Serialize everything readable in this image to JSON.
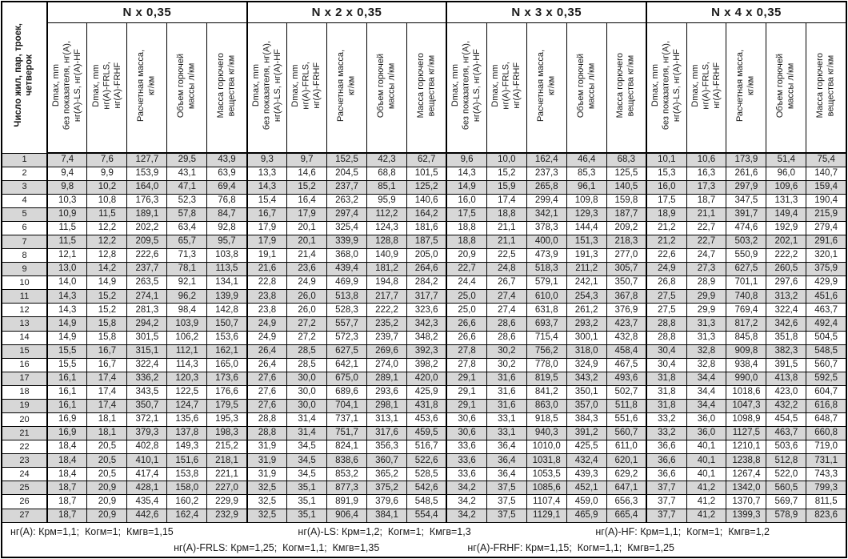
{
  "table": {
    "row_header": "Число жил, пар, троек,\nчетверок",
    "groups": [
      {
        "title": "N x 0,35"
      },
      {
        "title": "N x 2 x 0,35"
      },
      {
        "title": "N x 3 x 0,35"
      },
      {
        "title": "N x 4 x 0,35"
      }
    ],
    "col_headers": [
      "Dmax, mm\nбез показателя, нг(А),\nнг(А)-LS, нг(А)-HF",
      "Dmax, mm\nнг(А)-FRLS,\nнг(А)-FRHF",
      "Расчетная масса,\nкг/км",
      "Объем горючей\nмассы л/км",
      "Масса горючего\nвещества кг/км"
    ],
    "rows": [
      [
        "1",
        "7,4",
        "7,6",
        "127,7",
        "29,5",
        "43,9",
        "9,3",
        "9,7",
        "152,5",
        "42,3",
        "62,7",
        "9,6",
        "10,0",
        "162,4",
        "46,4",
        "68,3",
        "10,1",
        "10,6",
        "173,9",
        "51,4",
        "75,4"
      ],
      [
        "2",
        "9,4",
        "9,9",
        "153,9",
        "43,1",
        "63,9",
        "13,3",
        "14,6",
        "204,5",
        "68,8",
        "101,5",
        "14,3",
        "15,2",
        "237,3",
        "85,3",
        "125,5",
        "15,3",
        "16,3",
        "261,6",
        "96,0",
        "140,7"
      ],
      [
        "3",
        "9,8",
        "10,2",
        "164,0",
        "47,1",
        "69,4",
        "14,3",
        "15,2",
        "237,7",
        "85,1",
        "125,2",
        "14,9",
        "15,9",
        "265,8",
        "96,1",
        "140,5",
        "16,0",
        "17,3",
        "297,9",
        "109,6",
        "159,4"
      ],
      [
        "4",
        "10,3",
        "10,8",
        "176,3",
        "52,3",
        "76,8",
        "15,4",
        "16,4",
        "263,2",
        "95,9",
        "140,6",
        "16,0",
        "17,4",
        "299,4",
        "109,8",
        "159,8",
        "17,5",
        "18,7",
        "347,5",
        "131,3",
        "190,4"
      ],
      [
        "5",
        "10,9",
        "11,5",
        "189,1",
        "57,8",
        "84,7",
        "16,7",
        "17,9",
        "297,4",
        "112,2",
        "164,2",
        "17,5",
        "18,8",
        "342,1",
        "129,3",
        "187,7",
        "18,9",
        "21,1",
        "391,7",
        "149,4",
        "215,9"
      ],
      [
        "6",
        "11,5",
        "12,2",
        "202,2",
        "63,4",
        "92,8",
        "17,9",
        "20,1",
        "325,4",
        "124,3",
        "181,6",
        "18,8",
        "21,1",
        "378,3",
        "144,4",
        "209,2",
        "21,2",
        "22,7",
        "474,6",
        "192,9",
        "279,4"
      ],
      [
        "7",
        "11,5",
        "12,2",
        "209,5",
        "65,7",
        "95,7",
        "17,9",
        "20,1",
        "339,9",
        "128,8",
        "187,5",
        "18,8",
        "21,1",
        "400,0",
        "151,3",
        "218,3",
        "21,2",
        "22,7",
        "503,2",
        "202,1",
        "291,6"
      ],
      [
        "8",
        "12,1",
        "12,8",
        "222,6",
        "71,3",
        "103,8",
        "19,1",
        "21,4",
        "368,0",
        "140,9",
        "205,0",
        "20,9",
        "22,5",
        "473,9",
        "191,3",
        "277,0",
        "22,6",
        "24,7",
        "550,9",
        "222,2",
        "320,1"
      ],
      [
        "9",
        "13,0",
        "14,2",
        "237,7",
        "78,1",
        "113,5",
        "21,6",
        "23,6",
        "439,4",
        "181,2",
        "264,6",
        "22,7",
        "24,8",
        "518,3",
        "211,2",
        "305,7",
        "24,9",
        "27,3",
        "627,5",
        "260,5",
        "375,9"
      ],
      [
        "10",
        "14,0",
        "14,9",
        "263,5",
        "92,1",
        "134,1",
        "22,8",
        "24,9",
        "469,9",
        "194,8",
        "284,2",
        "24,4",
        "26,7",
        "579,1",
        "242,1",
        "350,7",
        "26,8",
        "28,9",
        "701,1",
        "297,6",
        "429,9"
      ],
      [
        "11",
        "14,3",
        "15,2",
        "274,1",
        "96,2",
        "139,9",
        "23,8",
        "26,0",
        "513,8",
        "217,7",
        "317,7",
        "25,0",
        "27,4",
        "610,0",
        "254,3",
        "367,8",
        "27,5",
        "29,9",
        "740,8",
        "313,2",
        "451,6"
      ],
      [
        "12",
        "14,3",
        "15,2",
        "281,3",
        "98,4",
        "142,8",
        "23,8",
        "26,0",
        "528,3",
        "222,2",
        "323,6",
        "25,0",
        "27,4",
        "631,8",
        "261,2",
        "376,9",
        "27,5",
        "29,9",
        "769,4",
        "322,4",
        "463,7"
      ],
      [
        "13",
        "14,9",
        "15,8",
        "294,2",
        "103,9",
        "150,7",
        "24,9",
        "27,2",
        "557,7",
        "235,2",
        "342,3",
        "26,6",
        "28,6",
        "693,7",
        "293,2",
        "423,7",
        "28,8",
        "31,3",
        "817,2",
        "342,6",
        "492,4"
      ],
      [
        "14",
        "14,9",
        "15,8",
        "301,5",
        "106,2",
        "153,6",
        "24,9",
        "27,2",
        "572,3",
        "239,7",
        "348,2",
        "26,6",
        "28,6",
        "715,4",
        "300,1",
        "432,8",
        "28,8",
        "31,3",
        "845,8",
        "351,8",
        "504,5"
      ],
      [
        "15",
        "15,5",
        "16,7",
        "315,1",
        "112,1",
        "162,1",
        "26,4",
        "28,5",
        "627,5",
        "269,6",
        "392,3",
        "27,8",
        "30,2",
        "756,2",
        "318,0",
        "458,4",
        "30,4",
        "32,8",
        "909,8",
        "382,3",
        "548,5"
      ],
      [
        "16",
        "15,5",
        "16,7",
        "322,4",
        "114,3",
        "165,0",
        "26,4",
        "28,5",
        "642,1",
        "274,0",
        "398,2",
        "27,8",
        "30,2",
        "778,0",
        "324,9",
        "467,5",
        "30,4",
        "32,8",
        "938,4",
        "391,5",
        "560,7"
      ],
      [
        "17",
        "16,1",
        "17,4",
        "336,2",
        "120,3",
        "173,6",
        "27,6",
        "30,0",
        "675,0",
        "289,1",
        "420,0",
        "29,1",
        "31,6",
        "819,5",
        "343,2",
        "493,6",
        "31,8",
        "34,4",
        "990,0",
        "413,8",
        "592,5"
      ],
      [
        "18",
        "16,1",
        "17,4",
        "343,5",
        "122,5",
        "176,6",
        "27,6",
        "30,0",
        "689,6",
        "293,6",
        "425,9",
        "29,1",
        "31,6",
        "841,2",
        "350,1",
        "502,7",
        "31,8",
        "34,4",
        "1018,6",
        "423,0",
        "604,7"
      ],
      [
        "19",
        "16,1",
        "17,4",
        "350,7",
        "124,7",
        "179,5",
        "27,6",
        "30,0",
        "704,1",
        "298,1",
        "431,8",
        "29,1",
        "31,6",
        "863,0",
        "357,0",
        "511,8",
        "31,8",
        "34,4",
        "1047,3",
        "432,2",
        "616,8"
      ],
      [
        "20",
        "16,9",
        "18,1",
        "372,1",
        "135,6",
        "195,3",
        "28,8",
        "31,4",
        "737,1",
        "313,1",
        "453,6",
        "30,6",
        "33,1",
        "918,5",
        "384,3",
        "551,6",
        "33,2",
        "36,0",
        "1098,9",
        "454,5",
        "648,7"
      ],
      [
        "21",
        "16,9",
        "18,1",
        "379,3",
        "137,8",
        "198,3",
        "28,8",
        "31,4",
        "751,7",
        "317,6",
        "459,5",
        "30,6",
        "33,1",
        "940,3",
        "391,2",
        "560,7",
        "33,2",
        "36,0",
        "1127,5",
        "463,7",
        "660,8"
      ],
      [
        "22",
        "18,4",
        "20,5",
        "402,8",
        "149,3",
        "215,2",
        "31,9",
        "34,5",
        "824,1",
        "356,3",
        "516,7",
        "33,6",
        "36,4",
        "1010,0",
        "425,5",
        "611,0",
        "36,6",
        "40,1",
        "1210,1",
        "503,6",
        "719,0"
      ],
      [
        "23",
        "18,4",
        "20,5",
        "410,1",
        "151,6",
        "218,1",
        "31,9",
        "34,5",
        "838,6",
        "360,7",
        "522,6",
        "33,6",
        "36,4",
        "1031,8",
        "432,4",
        "620,1",
        "36,6",
        "40,1",
        "1238,8",
        "512,8",
        "731,1"
      ],
      [
        "24",
        "18,4",
        "20,5",
        "417,4",
        "153,8",
        "221,1",
        "31,9",
        "34,5",
        "853,2",
        "365,2",
        "528,5",
        "33,6",
        "36,4",
        "1053,5",
        "439,3",
        "629,2",
        "36,6",
        "40,1",
        "1267,4",
        "522,0",
        "743,3"
      ],
      [
        "25",
        "18,7",
        "20,9",
        "428,1",
        "158,0",
        "227,0",
        "32,5",
        "35,1",
        "877,3",
        "375,2",
        "542,6",
        "34,2",
        "37,5",
        "1085,6",
        "452,1",
        "647,1",
        "37,7",
        "41,2",
        "1342,0",
        "560,5",
        "799,3"
      ],
      [
        "26",
        "18,7",
        "20,9",
        "435,4",
        "160,2",
        "229,9",
        "32,5",
        "35,1",
        "891,9",
        "379,6",
        "548,5",
        "34,2",
        "37,5",
        "1107,4",
        "459,0",
        "656,3",
        "37,7",
        "41,2",
        "1370,7",
        "569,7",
        "811,5"
      ],
      [
        "27",
        "18,7",
        "20,9",
        "442,6",
        "162,4",
        "232,9",
        "32,5",
        "35,1",
        "906,4",
        "384,1",
        "554,4",
        "34,2",
        "37,5",
        "1129,1",
        "465,9",
        "665,4",
        "37,7",
        "41,2",
        "1399,3",
        "578,9",
        "823,6"
      ]
    ]
  },
  "footer": {
    "line1": [
      "нг(А): Крм=1,1;  Когм=1;  Кмгв=1,15",
      "нг(А)-LS: Крм=1,2;  Когм=1;  Кмгв=1,3",
      "нг(А)-HF: Крм=1,1;  Когм=1;  Кмгв=1,2"
    ],
    "line2": [
      "нг(А)-FRLS: Крм=1,25;  Когм=1,1;  Кмгв=1,35",
      "нг(А)-FRHF: Крм=1,15;  Когм=1,1;  Кмгв=1,25"
    ]
  },
  "colors": {
    "stripe": "#d7d7d7",
    "border": "#000000",
    "background": "#ffffff"
  }
}
